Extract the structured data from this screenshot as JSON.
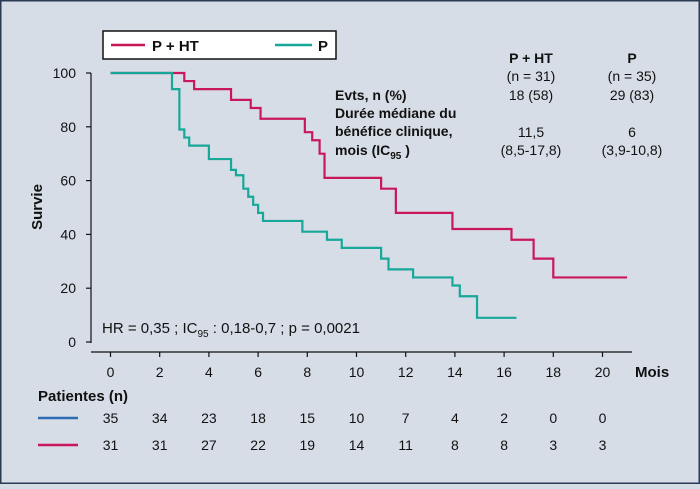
{
  "chart_data": {
    "type": "line",
    "subtype": "kaplan-meier-step",
    "ylabel": "Survie",
    "xlabel": "Mois",
    "xlim": [
      0,
      20
    ],
    "ylim": [
      0,
      100
    ],
    "x_ticks": [
      "0",
      "2",
      "4",
      "6",
      "8",
      "10",
      "12",
      "14",
      "16",
      "18",
      "20"
    ],
    "y_ticks": [
      "0",
      "20",
      "40",
      "60",
      "80",
      "100"
    ],
    "series": [
      {
        "name": "P + HT",
        "color": "#c8185a",
        "x": [
          0,
          3,
          3.4,
          4.9,
          5.7,
          6.1,
          7.9,
          8.2,
          8.5,
          8.7,
          11,
          11.6,
          13.9,
          16.3,
          17.2,
          18,
          21
        ],
        "y": [
          100,
          97,
          94,
          90,
          87,
          83,
          78,
          75,
          70,
          61,
          57,
          48,
          42,
          38,
          31,
          24,
          24
        ]
      },
      {
        "name": "P",
        "color": "#17a89a",
        "x": [
          0,
          2.5,
          2.8,
          3,
          3.2,
          4,
          4.9,
          5.1,
          5.4,
          5.6,
          5.8,
          6,
          6.2,
          7.8,
          8.8,
          9.4,
          11,
          11.3,
          12.3,
          13.9,
          14.2,
          14.9,
          16.5
        ],
        "y": [
          100,
          94,
          79,
          76,
          73,
          68,
          64,
          62,
          57,
          54,
          51,
          48,
          45,
          41,
          38,
          35,
          31,
          27,
          24,
          21,
          17,
          9,
          9
        ]
      }
    ],
    "legend": {
      "placement": "top-left",
      "entries": [
        "P + HT",
        "P"
      ]
    },
    "summary_table": {
      "headers": [
        {
          "name": "P + HT",
          "n": "(n = 31)"
        },
        {
          "name": "P",
          "n": "(n = 35)"
        }
      ],
      "row1": {
        "label": "Evts, n (%)",
        "values": [
          "18 (58)",
          "29 (83)"
        ]
      },
      "row2": {
        "label_lines": [
          "Durée médiane du",
          "bénéfice clinique,"
        ],
        "label_line3_text": "mois (IC",
        "label_line3_sub": "95",
        "label_line3_end": " )",
        "values": [
          "11,5",
          "6"
        ],
        "ci": [
          "(8,5-17,8)",
          "(3,9-10,8)"
        ]
      }
    },
    "annotation": {
      "text_before": "HR = 0,35 ; IC",
      "sub": "95",
      "text_after": " : 0,18-0,7 ; p = 0,0021"
    },
    "at_risk": {
      "title": "Patientes (n)",
      "times": [
        0,
        2,
        4,
        6,
        8,
        10,
        12,
        14,
        16,
        18,
        20
      ],
      "rows": [
        {
          "color": "#2e6bb5",
          "values": [
            "35",
            "34",
            "23",
            "18",
            "15",
            "10",
            "7",
            "4",
            "2",
            "0",
            "0"
          ]
        },
        {
          "color": "#c8185a",
          "values": [
            "31",
            "31",
            "27",
            "22",
            "19",
            "14",
            "11",
            "8",
            "8",
            "3",
            "3"
          ]
        }
      ]
    }
  }
}
